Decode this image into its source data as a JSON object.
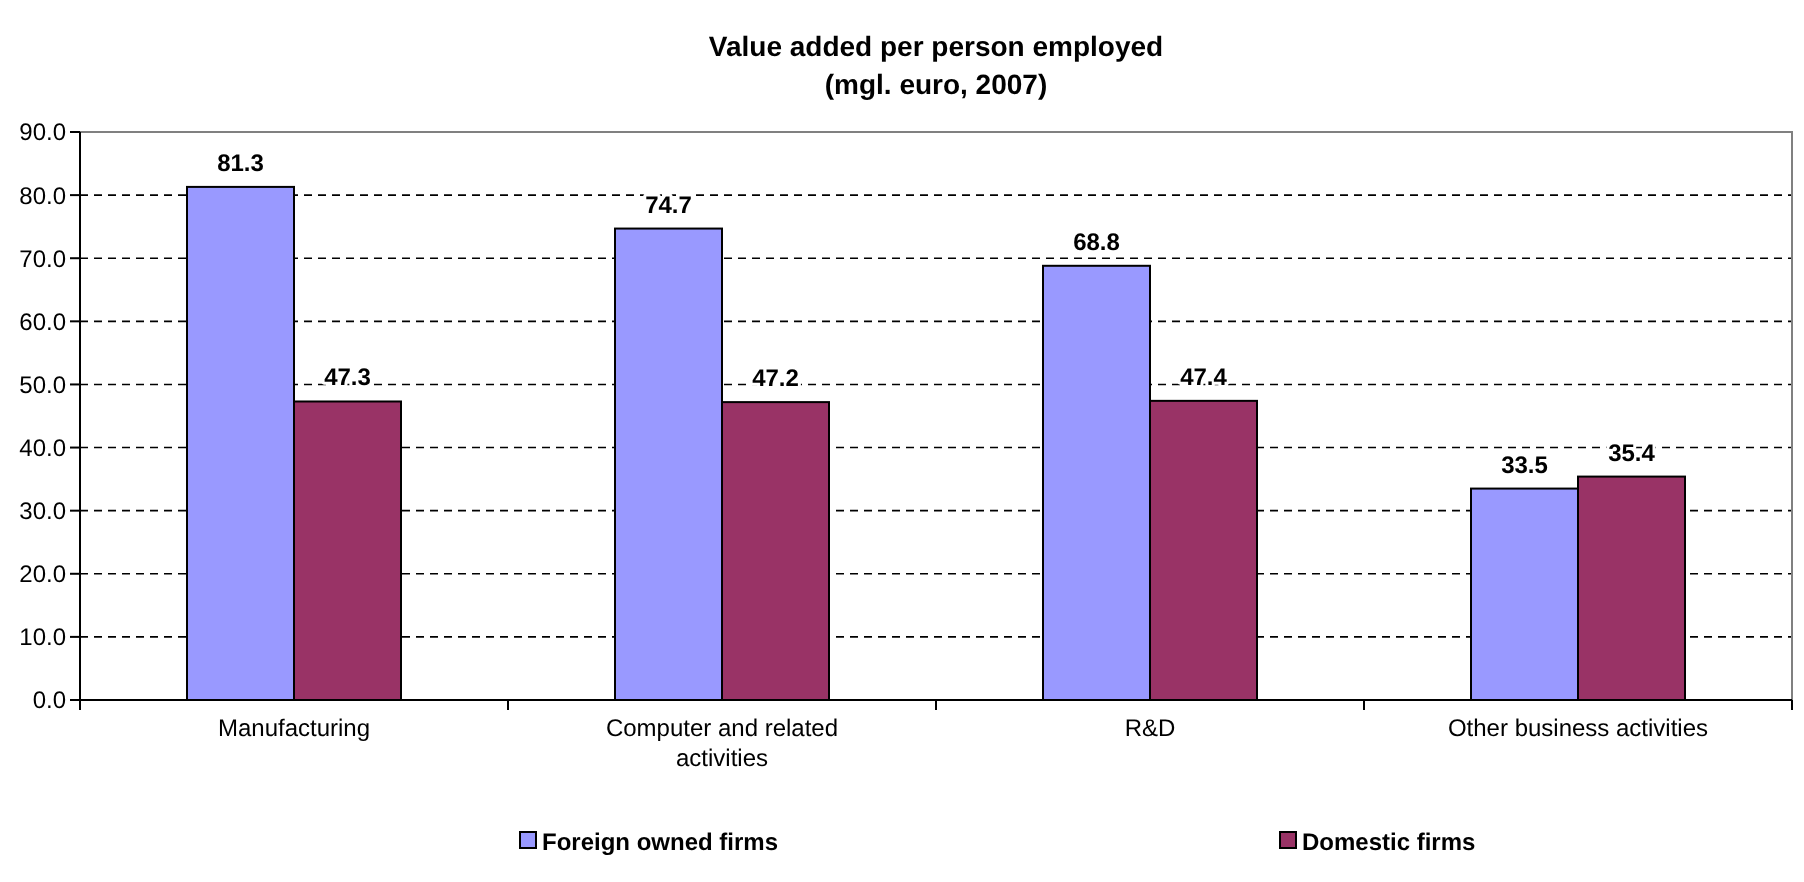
{
  "chart_data": {
    "type": "bar",
    "title": "Value added per person employed",
    "subtitle": "(mgl. euro, 2007)",
    "categories": [
      "Manufacturing",
      "Computer and related activities",
      "R&D",
      "Other business activities"
    ],
    "series": [
      {
        "name": "Foreign owned firms",
        "color": "#9999ff",
        "values": [
          81.3,
          74.7,
          68.8,
          33.5
        ]
      },
      {
        "name": "Domestic firms",
        "color": "#993366",
        "values": [
          47.3,
          47.2,
          47.4,
          35.4
        ]
      }
    ],
    "ylim": [
      0,
      90
    ],
    "yticks": [
      {
        "value": 0,
        "label": "0.0"
      },
      {
        "value": 10,
        "label": "10.0"
      },
      {
        "value": 20,
        "label": "20.0"
      },
      {
        "value": 30,
        "label": "30.0"
      },
      {
        "value": 40,
        "label": "40.0"
      },
      {
        "value": 50,
        "label": "50.0"
      },
      {
        "value": 60,
        "label": "60.0"
      },
      {
        "value": 70,
        "label": "70.0"
      },
      {
        "value": 80,
        "label": "80.0"
      },
      {
        "value": 90,
        "label": "90.0"
      }
    ],
    "grid": "y",
    "legend": "bottom",
    "data_labels": true
  }
}
